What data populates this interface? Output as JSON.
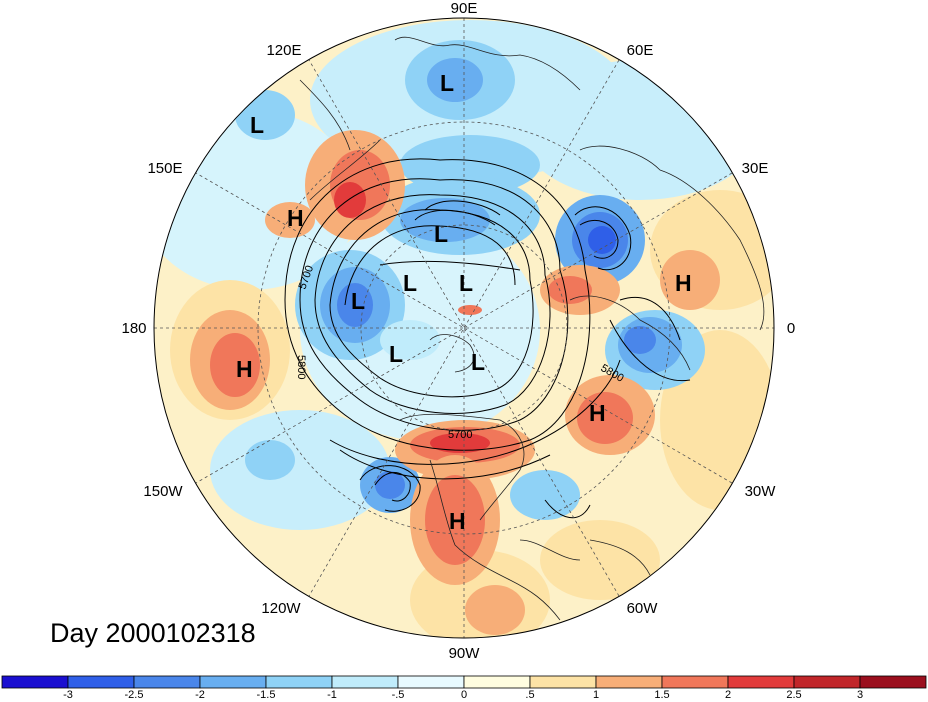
{
  "day_label": "Day 2000102318",
  "longitude_labels": {
    "lon_90e": "90E",
    "lon_60e": "60E",
    "lon_30e": "30E",
    "lon_0": "0",
    "lon_30w": "30W",
    "lon_60w": "60W",
    "lon_90w": "90W",
    "lon_120w": "120W",
    "lon_150w": "150W",
    "lon_180": "180",
    "lon_150e": "150E",
    "lon_120e": "120E"
  },
  "contour_labels": [
    "5700",
    "5800",
    "5800",
    "5700"
  ],
  "pressure_centers": [
    {
      "letter": "L",
      "region": "north-asia"
    },
    {
      "letter": "L",
      "region": "north-pacific"
    },
    {
      "letter": "H",
      "region": "east-asia"
    },
    {
      "letter": "L",
      "region": "siberia"
    },
    {
      "letter": "L",
      "region": "arctic-1"
    },
    {
      "letter": "L",
      "region": "arctic-2"
    },
    {
      "letter": "L",
      "region": "bering"
    },
    {
      "letter": "L",
      "region": "arctic-canada-1"
    },
    {
      "letter": "L",
      "region": "arctic-canada-2"
    },
    {
      "letter": "H",
      "region": "central-pacific"
    },
    {
      "letter": "H",
      "region": "north-america"
    },
    {
      "letter": "H",
      "region": "north-atlantic"
    },
    {
      "letter": "H",
      "region": "africa-europe"
    }
  ],
  "colorbar": {
    "ticks": [
      "-3",
      "-2.5",
      "-2",
      "-1.5",
      "-1",
      "-.5",
      "0",
      ".5",
      "1",
      "1.5",
      "2",
      "2.5",
      "3"
    ],
    "colors": [
      "#1a0fd0",
      "#2f5fe8",
      "#4a86ea",
      "#68aef0",
      "#8fd2f6",
      "#c0ecfb",
      "#e8faff",
      "#fffde0",
      "#fde3a6",
      "#f7ae78",
      "#f0775a",
      "#e23b3b",
      "#c1262a",
      "#9b0f1e"
    ]
  }
}
